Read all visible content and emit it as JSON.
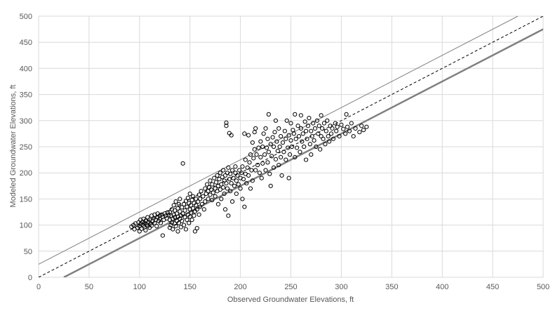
{
  "chart_data": {
    "type": "scatter",
    "title": "",
    "xlabel": "Observed Groundwater Elevations, ft",
    "ylabel": "Modeled Groundwater Elevations, ft",
    "xlim": [
      0,
      500
    ],
    "ylim": [
      0,
      500
    ],
    "x_ticks": [
      0,
      50,
      100,
      150,
      200,
      250,
      300,
      350,
      400,
      450,
      500
    ],
    "y_ticks": [
      0,
      50,
      100,
      150,
      200,
      250,
      300,
      350,
      400,
      450,
      500
    ],
    "grid": true,
    "legend": "none",
    "colors": {
      "points": "#000000",
      "grid": "#d9d9d9",
      "one_to_one": "#000000",
      "upper_band": "#808080",
      "lower_band": "#808080"
    },
    "reference_lines": [
      {
        "kind": "one-to-one",
        "style": "dashed",
        "points": [
          [
            0,
            0
          ],
          [
            500,
            500
          ]
        ]
      },
      {
        "kind": "upper-band",
        "style": "solid-thin",
        "points": [
          [
            0,
            25
          ],
          [
            475,
            500
          ]
        ]
      },
      {
        "kind": "lower-band",
        "style": "solid-thick",
        "points": [
          [
            25,
            0
          ],
          [
            500,
            475
          ]
        ]
      }
    ],
    "series": [
      {
        "marker": "open-circle",
        "points": [
          [
            92,
            97
          ],
          [
            94,
            100
          ],
          [
            95,
            92
          ],
          [
            96,
            103
          ],
          [
            98,
            95
          ],
          [
            99,
            105
          ],
          [
            100,
            88
          ],
          [
            100,
            98
          ],
          [
            101,
            102
          ],
          [
            101,
            110
          ],
          [
            102,
            93
          ],
          [
            103,
            106
          ],
          [
            104,
            99
          ],
          [
            104,
            112
          ],
          [
            105,
            96
          ],
          [
            105,
            104
          ],
          [
            106,
            90
          ],
          [
            106,
            108
          ],
          [
            107,
            101
          ],
          [
            108,
            115
          ],
          [
            108,
            98
          ],
          [
            109,
            106
          ],
          [
            110,
            95
          ],
          [
            110,
            110
          ],
          [
            111,
            103
          ],
          [
            112,
            118
          ],
          [
            112,
            99
          ],
          [
            113,
            107
          ],
          [
            114,
            113
          ],
          [
            115,
            104
          ],
          [
            115,
            120
          ],
          [
            116,
            110
          ],
          [
            117,
            98
          ],
          [
            118,
            115
          ],
          [
            118,
            122
          ],
          [
            119,
            108
          ],
          [
            120,
            112
          ],
          [
            120,
            118
          ],
          [
            121,
            104
          ],
          [
            122,
            120
          ],
          [
            123,
            80
          ],
          [
            123,
            116
          ],
          [
            124,
            110
          ],
          [
            125,
            122
          ],
          [
            126,
            118
          ],
          [
            127,
            113
          ],
          [
            128,
            124
          ],
          [
            129,
            119
          ],
          [
            130,
            95
          ],
          [
            130,
            110
          ],
          [
            130,
            125
          ],
          [
            131,
            100
          ],
          [
            131,
            118
          ],
          [
            132,
            105
          ],
          [
            132,
            130
          ],
          [
            133,
            112
          ],
          [
            133,
            92
          ],
          [
            134,
            120
          ],
          [
            134,
            138
          ],
          [
            135,
            103
          ],
          [
            135,
            115
          ],
          [
            135,
            128
          ],
          [
            136,
            98
          ],
          [
            136,
            145
          ],
          [
            137,
            108
          ],
          [
            137,
            122
          ],
          [
            138,
            88
          ],
          [
            138,
            116
          ],
          [
            138,
            132
          ],
          [
            139,
            104
          ],
          [
            139,
            140
          ],
          [
            140,
            112
          ],
          [
            140,
            126
          ],
          [
            140,
            150
          ],
          [
            141,
            96
          ],
          [
            141,
            118
          ],
          [
            142,
            108
          ],
          [
            142,
            134
          ],
          [
            143,
            122
          ],
          [
            143,
            218
          ],
          [
            144,
            100
          ],
          [
            144,
            140
          ],
          [
            145,
            115
          ],
          [
            145,
            128
          ],
          [
            146,
            92
          ],
          [
            146,
            146
          ],
          [
            147,
            110
          ],
          [
            147,
            135
          ],
          [
            148,
            120
          ],
          [
            148,
            152
          ],
          [
            149,
            104
          ],
          [
            149,
            142
          ],
          [
            150,
            116
          ],
          [
            150,
            130
          ],
          [
            150,
            160
          ],
          [
            151,
            124
          ],
          [
            151,
            138
          ],
          [
            152,
            110
          ],
          [
            152,
            148
          ],
          [
            153,
            132
          ],
          [
            153,
            155
          ],
          [
            154,
            118
          ],
          [
            154,
            142
          ],
          [
            155,
            126
          ],
          [
            155,
            88
          ],
          [
            156,
            138
          ],
          [
            156,
            150
          ],
          [
            157,
            130
          ],
          [
            157,
            94
          ],
          [
            158,
            145
          ],
          [
            159,
            120
          ],
          [
            159,
            158
          ],
          [
            160,
            135
          ],
          [
            160,
            150
          ],
          [
            161,
            165
          ],
          [
            162,
            140
          ],
          [
            163,
            155
          ],
          [
            164,
            130
          ],
          [
            165,
            170
          ],
          [
            165,
            145
          ],
          [
            166,
            160
          ],
          [
            167,
            178
          ],
          [
            168,
            150
          ],
          [
            168,
            165
          ],
          [
            169,
            172
          ],
          [
            170,
            158
          ],
          [
            170,
            185
          ],
          [
            171,
            168
          ],
          [
            172,
            148
          ],
          [
            172,
            178
          ],
          [
            173,
            162
          ],
          [
            174,
            190
          ],
          [
            175,
            170
          ],
          [
            175,
            155
          ],
          [
            176,
            182
          ],
          [
            177,
            165
          ],
          [
            177,
            195
          ],
          [
            178,
            175
          ],
          [
            178,
            140
          ],
          [
            179,
            188
          ],
          [
            180,
            168
          ],
          [
            180,
            200
          ],
          [
            181,
            178
          ],
          [
            181,
            150
          ],
          [
            182,
            192
          ],
          [
            183,
            172
          ],
          [
            183,
            205
          ],
          [
            184,
            185
          ],
          [
            184,
            160
          ],
          [
            185,
            195
          ],
          [
            185,
            130
          ],
          [
            186,
            180
          ],
          [
            186,
            290
          ],
          [
            186,
            296
          ],
          [
            187,
            200
          ],
          [
            187,
            170
          ],
          [
            188,
            210
          ],
          [
            188,
            118
          ],
          [
            189,
            188
          ],
          [
            189,
            276
          ],
          [
            190,
            198
          ],
          [
            190,
            165
          ],
          [
            191,
            180
          ],
          [
            191,
            272
          ],
          [
            192,
            205
          ],
          [
            192,
            145
          ],
          [
            193,
            190
          ],
          [
            194,
            175
          ],
          [
            195,
            200
          ],
          [
            195,
            212
          ],
          [
            196,
            185
          ],
          [
            196,
            160
          ],
          [
            197,
            195
          ],
          [
            198,
            178
          ],
          [
            199,
            205
          ],
          [
            200,
            190
          ],
          [
            200,
            170
          ],
          [
            201,
            200
          ],
          [
            202,
            212
          ],
          [
            202,
            150
          ],
          [
            203,
            188
          ],
          [
            204,
            135
          ],
          [
            204,
            275
          ],
          [
            205,
            198
          ],
          [
            205,
            225
          ],
          [
            206,
            180
          ],
          [
            207,
            210
          ],
          [
            208,
            195
          ],
          [
            208,
            272
          ],
          [
            209,
            220
          ],
          [
            210,
            170
          ],
          [
            210,
            235
          ],
          [
            211,
            205
          ],
          [
            212,
            185
          ],
          [
            212,
            258
          ],
          [
            213,
            228
          ],
          [
            214,
            245
          ],
          [
            214,
            278
          ],
          [
            215,
            205
          ],
          [
            215,
            285
          ],
          [
            216,
            235
          ],
          [
            217,
            215
          ],
          [
            218,
            248
          ],
          [
            219,
            200
          ],
          [
            220,
            230
          ],
          [
            220,
            260
          ],
          [
            221,
            190
          ],
          [
            222,
            218
          ],
          [
            222,
            250
          ],
          [
            223,
            275
          ],
          [
            224,
            235
          ],
          [
            225,
            205
          ],
          [
            225,
            285
          ],
          [
            226,
            248
          ],
          [
            227,
            220
          ],
          [
            227,
            265
          ],
          [
            228,
            240
          ],
          [
            228,
            312
          ],
          [
            229,
            198
          ],
          [
            230,
            255
          ],
          [
            230,
            175
          ],
          [
            231,
            232
          ],
          [
            232,
            268
          ],
          [
            233,
            210
          ],
          [
            233,
            250
          ],
          [
            234,
            278
          ],
          [
            235,
            226
          ],
          [
            235,
            300
          ],
          [
            236,
            260
          ],
          [
            237,
            242
          ],
          [
            238,
            215
          ],
          [
            238,
            285
          ],
          [
            239,
            250
          ],
          [
            240,
            230
          ],
          [
            240,
            270
          ],
          [
            241,
            195
          ],
          [
            242,
            258
          ],
          [
            243,
            240
          ],
          [
            244,
            280
          ],
          [
            245,
            265
          ],
          [
            245,
            225
          ],
          [
            246,
            300
          ],
          [
            247,
            248
          ],
          [
            248,
            272
          ],
          [
            248,
            190
          ],
          [
            249,
            235
          ],
          [
            250,
            262
          ],
          [
            250,
            295
          ],
          [
            251,
            250
          ],
          [
            252,
            282
          ],
          [
            253,
            275
          ],
          [
            254,
            230
          ],
          [
            254,
            312
          ],
          [
            255,
            265
          ],
          [
            256,
            248
          ],
          [
            257,
            290
          ],
          [
            258,
            270
          ],
          [
            259,
            240
          ],
          [
            260,
            285
          ],
          [
            260,
            310
          ],
          [
            261,
            260
          ],
          [
            262,
            275
          ],
          [
            263,
            250
          ],
          [
            264,
            298
          ],
          [
            265,
            280
          ],
          [
            265,
            225
          ],
          [
            266,
            265
          ],
          [
            267,
            290
          ],
          [
            268,
            305
          ],
          [
            269,
            255
          ],
          [
            270,
            280
          ],
          [
            270,
            235
          ],
          [
            271,
            270
          ],
          [
            272,
            295
          ],
          [
            273,
            262
          ],
          [
            274,
            285
          ],
          [
            275,
            250
          ],
          [
            276,
            300
          ],
          [
            277,
            275
          ],
          [
            278,
            290
          ],
          [
            279,
            245
          ],
          [
            280,
            270
          ],
          [
            280,
            310
          ],
          [
            281,
            285
          ],
          [
            282,
            265
          ],
          [
            283,
            295
          ],
          [
            284,
            255
          ],
          [
            285,
            280
          ],
          [
            286,
            300
          ],
          [
            287,
            270
          ],
          [
            288,
            260
          ],
          [
            289,
            290
          ],
          [
            290,
            275
          ],
          [
            291,
            285
          ],
          [
            292,
            265
          ],
          [
            294,
            295
          ],
          [
            295,
            280
          ],
          [
            296,
            288
          ],
          [
            298,
            270
          ],
          [
            300,
            292
          ],
          [
            302,
            284
          ],
          [
            304,
            275
          ],
          [
            305,
            312
          ],
          [
            306,
            288
          ],
          [
            308,
            280
          ],
          [
            310,
            295
          ],
          [
            312,
            270
          ],
          [
            314,
            285
          ],
          [
            318,
            278
          ],
          [
            320,
            290
          ],
          [
            322,
            282
          ],
          [
            325,
            288
          ]
        ]
      }
    ]
  }
}
